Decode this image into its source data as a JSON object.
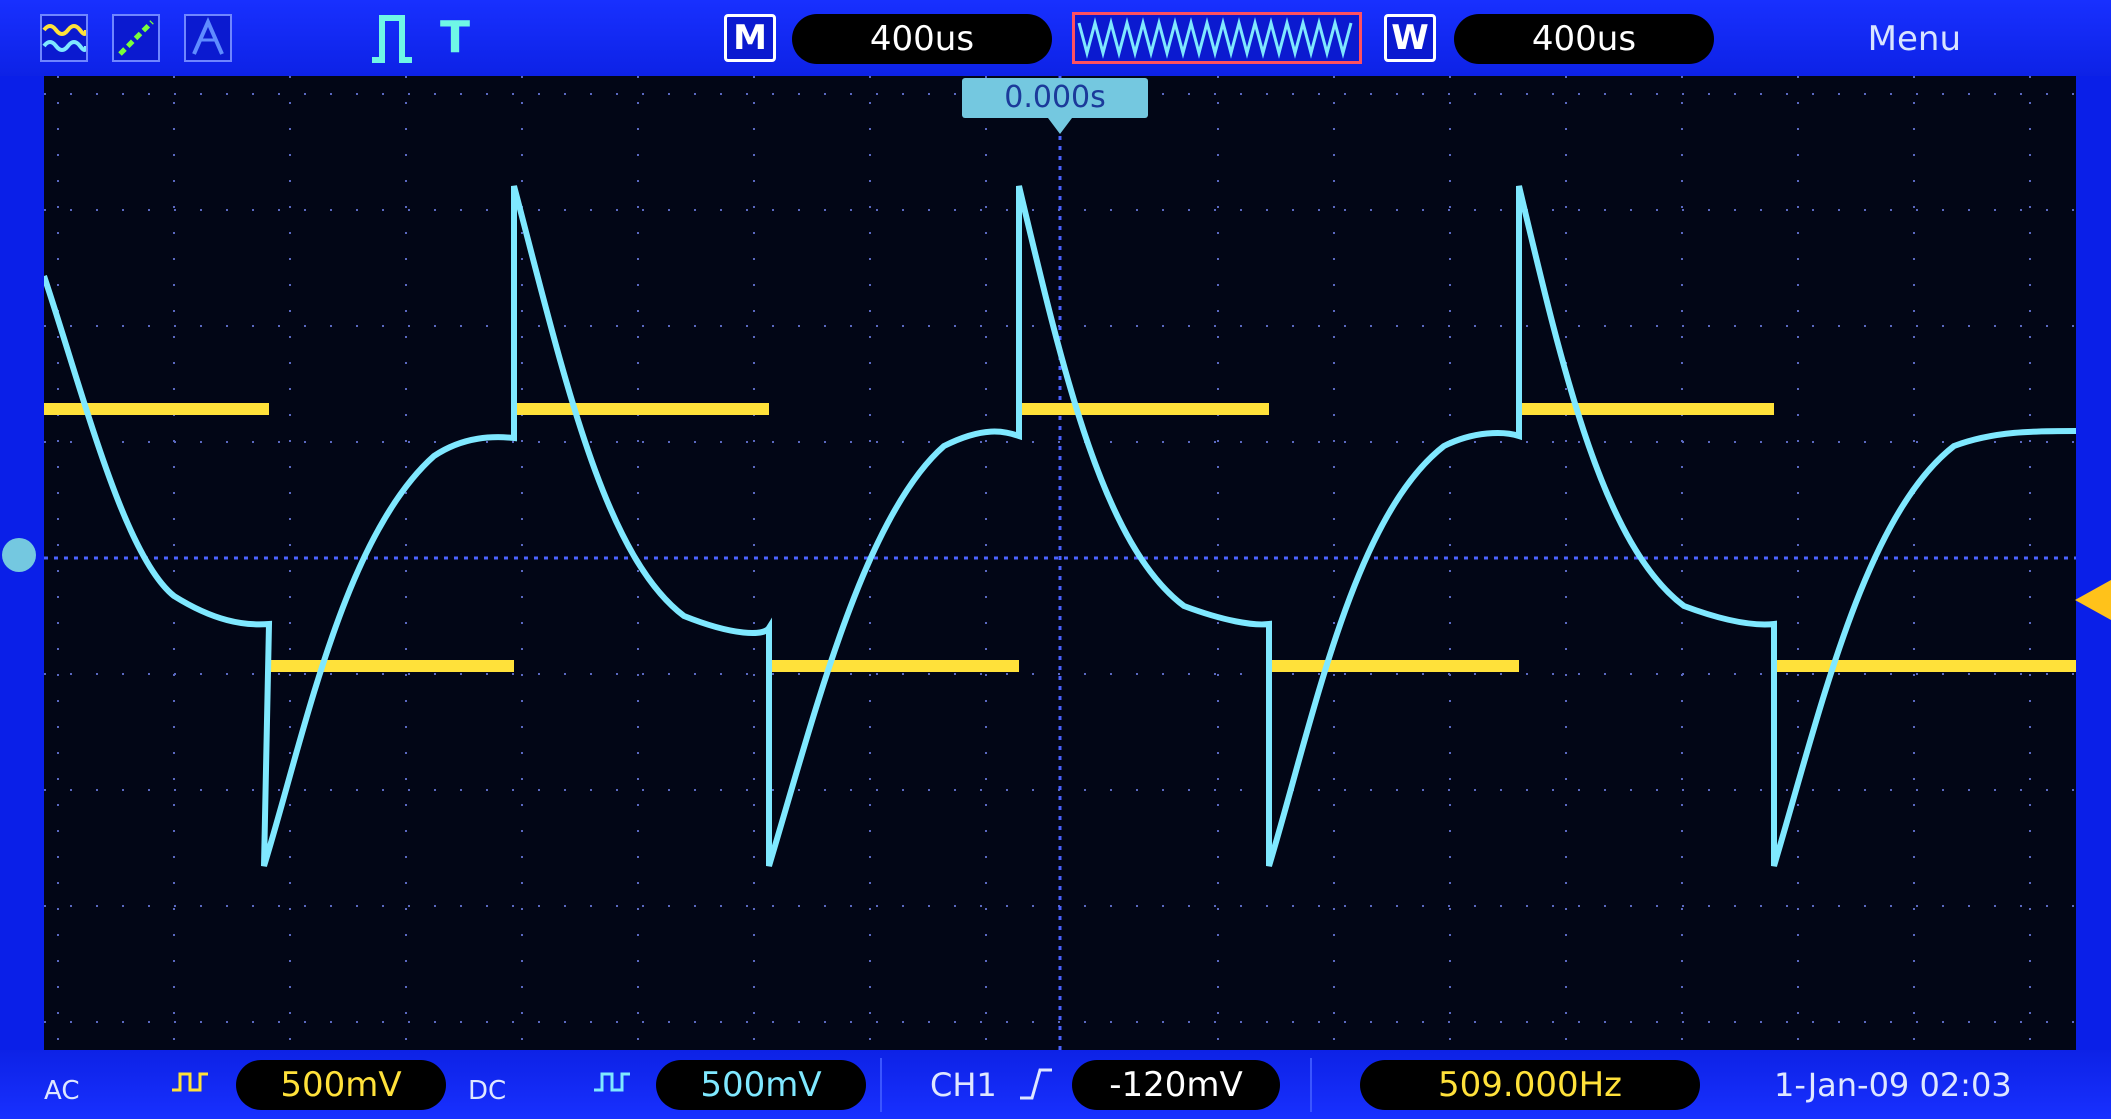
{
  "topbar": {
    "left_icons": [
      "waveform-mode-icon",
      "xy-mode-icon",
      "acquire-mode-icon"
    ],
    "trigger_icon": "pulse-trigger-icon",
    "trigger_label": "T",
    "m_label": "M",
    "m_timebase": "400us",
    "w_label": "W",
    "w_timebase": "400us",
    "menu_label": "Menu"
  },
  "screen": {
    "trigger_time": "0.000s",
    "ch1_color": "#ffe13a",
    "ch2_color": "#7fe8ff"
  },
  "bottombar": {
    "ch1_coupling": "AC",
    "ch1_scale": "500mV",
    "ch2_coupling": "DC",
    "ch2_scale": "500mV",
    "trigger_source": "CH1",
    "trigger_level": "-120mV",
    "frequency": "509.000Hz",
    "datetime": "1-Jan-09 02:03"
  }
}
